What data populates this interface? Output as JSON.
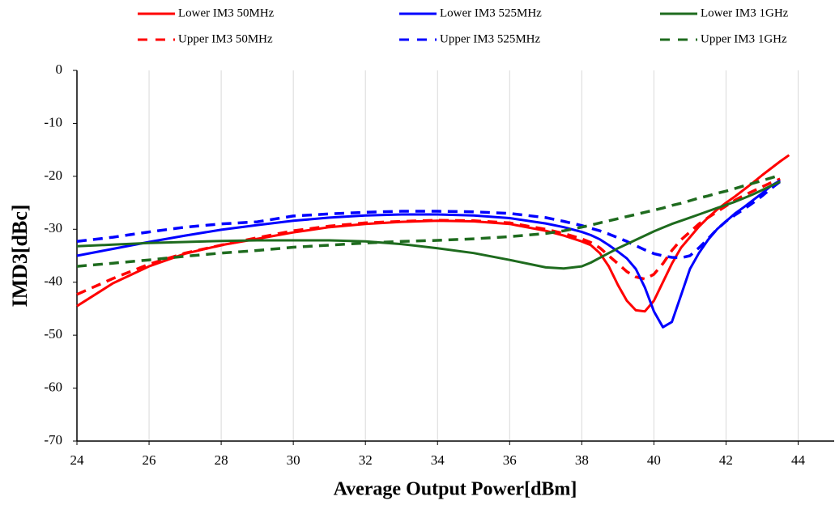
{
  "chart_data": {
    "type": "line",
    "xlabel": "Average Output Power[dBm]",
    "ylabel": "IMD3[dBc]",
    "xlim": [
      24,
      45
    ],
    "xticks": [
      24,
      26,
      28,
      30,
      32,
      34,
      36,
      38,
      40,
      42,
      44
    ],
    "ylim": [
      -70,
      0
    ],
    "yticks": [
      -70,
      -60,
      -50,
      -40,
      -30,
      -20,
      -10,
      0
    ],
    "grid": "x",
    "x": [
      24,
      25,
      26,
      27,
      28,
      29,
      30,
      31,
      32,
      33,
      34,
      35,
      36,
      37,
      37.5,
      38,
      38.25,
      38.5,
      38.75,
      39,
      39.25,
      39.5,
      39.75,
      40,
      40.25,
      40.5,
      40.75,
      41,
      41.25,
      41.5,
      41.75,
      42,
      42.25,
      42.5,
      42.75,
      43,
      43.25,
      43.5,
      43.75
    ],
    "series": [
      {
        "name": "Lower IM3 50MHz",
        "color": "#ff0000",
        "dashed": false,
        "values": [
          -44.5,
          -40.2,
          -37,
          -34.6,
          -33,
          -31.8,
          -30.6,
          -29.6,
          -29,
          -28.6,
          -28.4,
          -28.5,
          -29,
          -30.3,
          -31.2,
          -32.3,
          -33,
          -34.5,
          -37,
          -40.5,
          -43.5,
          -45.3,
          -45.5,
          -43.5,
          -40,
          -36.5,
          -33.5,
          -31.5,
          -29.5,
          -27.8,
          -26.3,
          -25,
          -23.8,
          -22.5,
          -21.2,
          -19.8,
          -18.5,
          -17.2,
          -16
        ]
      },
      {
        "name": "Upper IM3 50MHz",
        "color": "#ff0000",
        "dashed": true,
        "values": [
          -42.3,
          -39.3,
          -36.6,
          -34.5,
          -33,
          -31.6,
          -30.3,
          -29.4,
          -28.8,
          -28.5,
          -28.3,
          -28.4,
          -28.8,
          -30,
          -30.8,
          -31.8,
          -32.5,
          -33.5,
          -35,
          -36.5,
          -38,
          -39,
          -39.4,
          -38.5,
          -36.5,
          -34,
          -32,
          -30.5,
          -29,
          -27.8,
          -26.7,
          -25.6,
          -24.5,
          -23.6,
          -22.8,
          -22,
          -21.2,
          -20.5,
          null
        ]
      },
      {
        "name": "Lower IM3 525MHz",
        "color": "#0000ff",
        "dashed": false,
        "values": [
          -35,
          -33.7,
          -32.4,
          -31.2,
          -30.1,
          -29.2,
          -28.4,
          -27.8,
          -27.4,
          -27.2,
          -27.2,
          -27.4,
          -27.9,
          -28.9,
          -29.6,
          -30.5,
          -31.1,
          -31.9,
          -33,
          -34.2,
          -35.5,
          -37.5,
          -41,
          -45.5,
          -48.5,
          -47.5,
          -42.5,
          -37.5,
          -34.5,
          -32,
          -30,
          -28.5,
          -27,
          -25.8,
          -24.5,
          -23.2,
          -21.8,
          -20.8,
          null
        ]
      },
      {
        "name": "Upper IM3 525MHz",
        "color": "#0000ff",
        "dashed": true,
        "values": [
          -32.3,
          -31.5,
          -30.5,
          -29.6,
          -29,
          -28.6,
          -27.5,
          -27.1,
          -26.8,
          -26.6,
          -26.6,
          -26.7,
          -27,
          -27.8,
          -28.5,
          -29.3,
          -29.8,
          -30.3,
          -30.9,
          -31.6,
          -32.3,
          -33.1,
          -33.9,
          -34.6,
          -35,
          -35.3,
          -35.4,
          -35,
          -33.5,
          -31.8,
          -30,
          -28.5,
          -27.3,
          -26.2,
          -25,
          -23.7,
          -22.3,
          -21,
          null
        ]
      },
      {
        "name": "Lower IM3 1GHz",
        "color": "#1e6b1e",
        "dashed": false,
        "values": [
          -33.2,
          -32.9,
          -32.6,
          -32.4,
          -32.2,
          -32.1,
          -32.1,
          -32.1,
          -32.3,
          -32.8,
          -33.6,
          -34.5,
          -35.8,
          -37.2,
          -37.4,
          -37,
          -36.3,
          -35.4,
          -34.5,
          -33.6,
          -32.8,
          -32,
          -31.2,
          -30.4,
          -29.7,
          -29,
          -28.4,
          -27.8,
          -27.2,
          -26.6,
          -26,
          -25.4,
          -24.8,
          -24.1,
          -23.4,
          -22.6,
          -21.8,
          -21,
          null
        ]
      },
      {
        "name": "Upper IM3 1GHz",
        "color": "#1e6b1e",
        "dashed": true,
        "values": [
          -37,
          -36.4,
          -35.8,
          -35.1,
          -34.5,
          -34,
          -33.4,
          -33,
          -32.6,
          -32.3,
          -32.1,
          -31.8,
          -31.4,
          -30.8,
          -30.3,
          -29.6,
          -29.2,
          -28.8,
          -28.4,
          -28,
          -27.6,
          -27.2,
          -26.8,
          -26.4,
          -26,
          -25.5,
          -25.1,
          -24.6,
          -24.1,
          -23.7,
          -23.2,
          -22.8,
          -22.3,
          -21.8,
          -21.3,
          -20.8,
          -20.3,
          -19.8,
          null
        ]
      }
    ]
  }
}
